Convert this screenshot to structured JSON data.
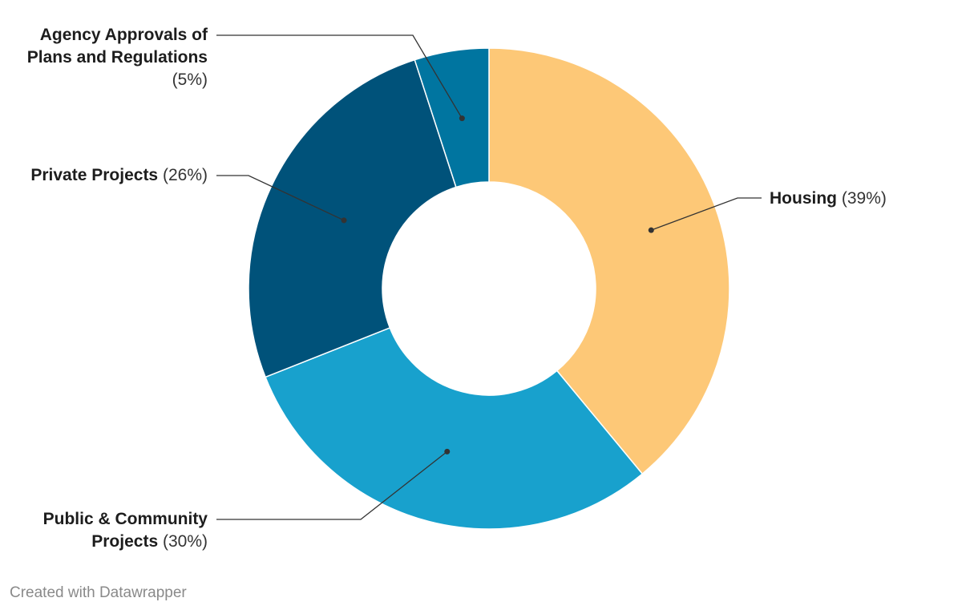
{
  "chart_data": {
    "type": "pie",
    "variant": "donut",
    "title": "",
    "categories": [
      "Housing",
      "Public & Community Projects",
      "Private Projects",
      "Agency Approvals of Plans and Regulations"
    ],
    "values": [
      39,
      30,
      26,
      5
    ],
    "percent_labels": [
      "(39%)",
      "(30%)",
      "(26%)",
      "(5%)"
    ],
    "colors": [
      "#fdc877",
      "#18a1cd",
      "#00527a",
      "#0075a0"
    ],
    "label_lines": {
      "housing": [
        "Housing"
      ],
      "public": [
        "Public & Community",
        "Projects"
      ],
      "private": [
        "Private Projects"
      ],
      "agency": [
        "Agency Approvals of",
        "Plans and Regulations"
      ]
    }
  },
  "footer": {
    "credit": "Created with Datawrapper"
  }
}
